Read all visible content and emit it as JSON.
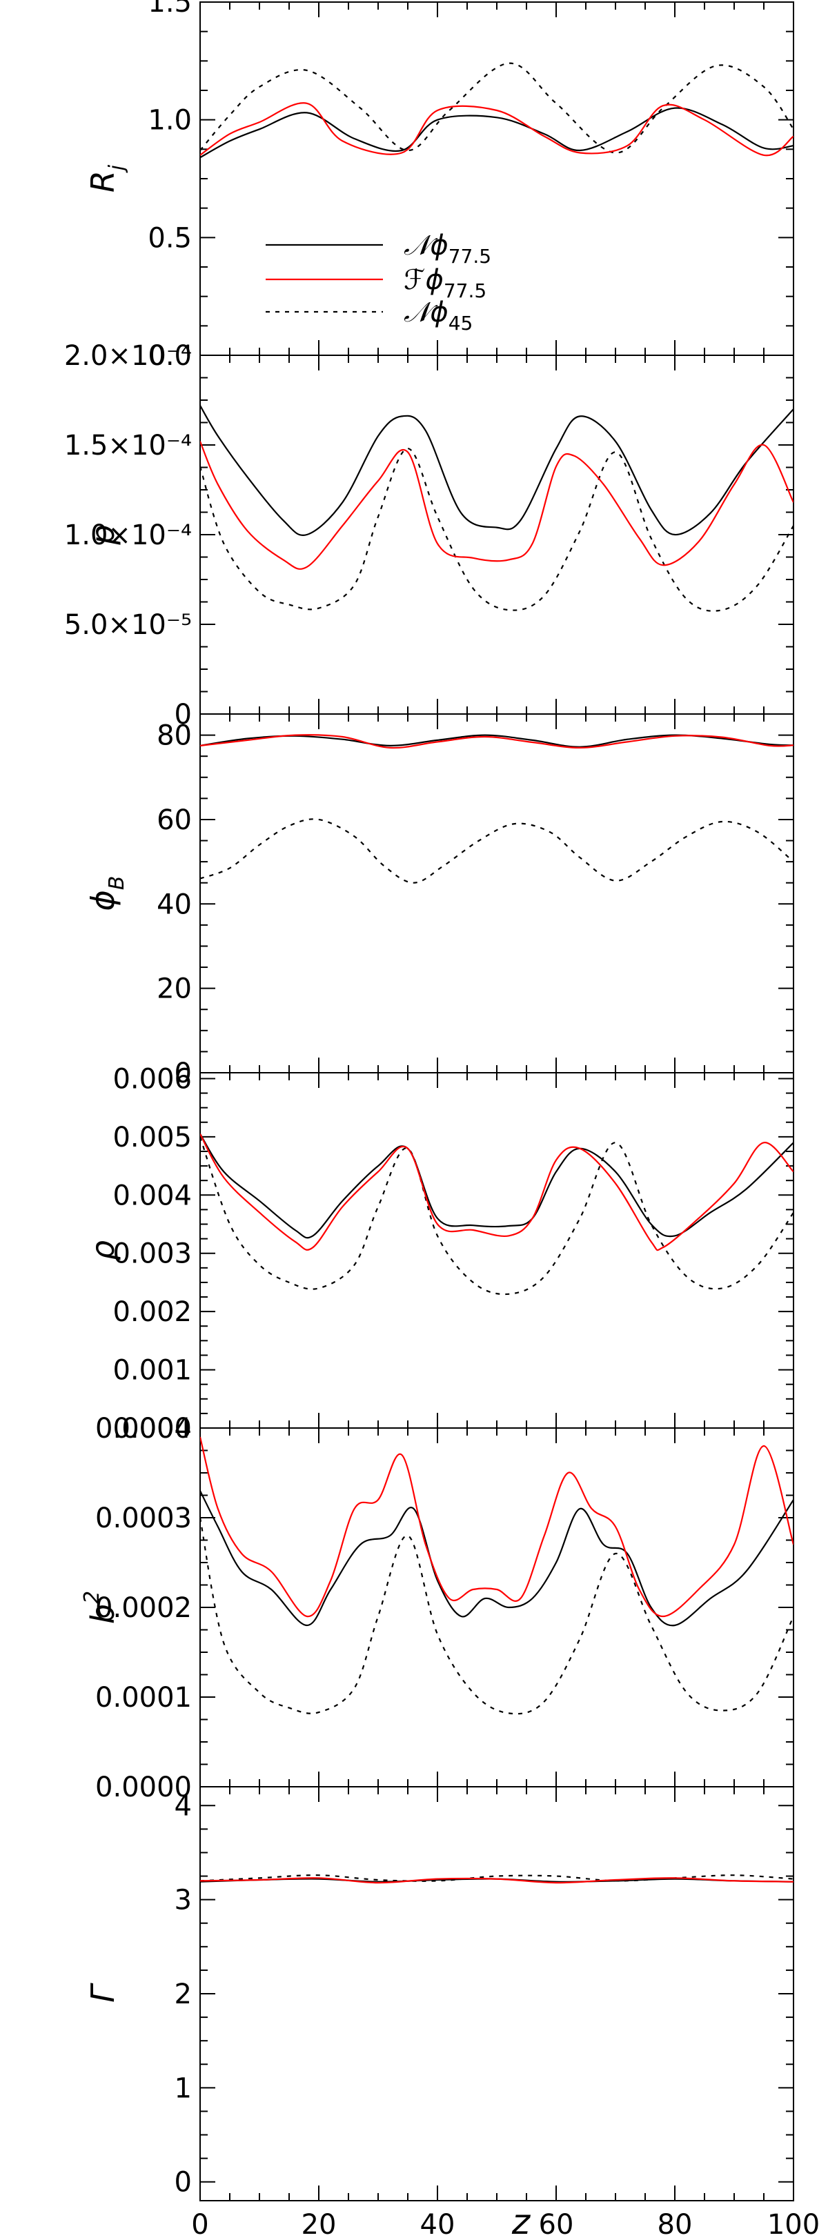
{
  "figure": {
    "xlabel": "z",
    "legend": {
      "placement": "lower-left of top panel",
      "entries": [
        {
          "key": "N77",
          "label": "𝒩ϕ",
          "sub": "77.5",
          "color": "#000000",
          "dash": "solid"
        },
        {
          "key": "F77",
          "label": "ℱϕ",
          "sub": "77.5",
          "color": "#ff0000",
          "dash": "solid"
        },
        {
          "key": "N45",
          "label": "𝒩ϕ",
          "sub": "45",
          "color": "#000000",
          "dash": "dotted"
        }
      ]
    }
  },
  "chart_data": [
    {
      "type": "line",
      "ylabel": "R",
      "ylabel_sub": "j",
      "xlim": [
        0,
        100
      ],
      "ylim": [
        0,
        1.5
      ],
      "x_ticks": [
        0,
        20,
        40,
        60,
        80,
        100
      ],
      "x_tick_labels": [
        "0",
        "20",
        "40",
        "60",
        "80",
        "100"
      ],
      "y_ticks": [
        0,
        0.5,
        1.0,
        1.5
      ],
      "y_tick_labels": [
        "0.0",
        "0.5",
        "1.0",
        "1.5"
      ],
      "series": [
        {
          "key": "N77",
          "x": [
            0,
            5,
            10,
            18,
            26,
            34,
            40,
            50,
            58,
            64,
            72,
            80,
            88,
            95,
            100
          ],
          "y": [
            0.84,
            0.91,
            0.96,
            1.03,
            0.92,
            0.87,
            1.0,
            1.01,
            0.94,
            0.87,
            0.95,
            1.05,
            0.98,
            0.88,
            0.89
          ]
        },
        {
          "key": "F77",
          "x": [
            0,
            5,
            10,
            18,
            24,
            34,
            40,
            50,
            58,
            64,
            72,
            78,
            85,
            95,
            100
          ],
          "y": [
            0.85,
            0.94,
            0.99,
            1.07,
            0.91,
            0.86,
            1.04,
            1.04,
            0.93,
            0.86,
            0.89,
            1.06,
            1.0,
            0.85,
            0.93
          ]
        },
        {
          "key": "N45",
          "x": [
            0,
            5,
            10,
            18,
            27,
            35,
            42,
            52,
            60,
            70,
            78,
            87,
            95,
            100
          ],
          "y": [
            0.87,
            1.02,
            1.14,
            1.21,
            1.05,
            0.87,
            1.04,
            1.24,
            1.07,
            0.86,
            1.05,
            1.23,
            1.14,
            0.96
          ]
        }
      ]
    },
    {
      "type": "line",
      "ylabel": "p",
      "xlim": [
        0,
        100
      ],
      "ylim": [
        0,
        0.0002
      ],
      "x_ticks": [
        0,
        20,
        40,
        60,
        80,
        100
      ],
      "x_tick_labels": [
        "0",
        "20",
        "40",
        "60",
        "80",
        "100"
      ],
      "y_ticks": [
        0,
        5e-05,
        0.0001,
        0.00015,
        0.0002
      ],
      "y_tick_labels": [
        "0",
        "5.0×10⁻⁵",
        "1.0×10⁻⁴",
        "1.5×10⁻⁴",
        "2.0×10⁻⁴"
      ],
      "series": [
        {
          "key": "N77",
          "x": [
            0,
            3,
            8,
            14,
            18,
            24,
            30,
            34,
            38,
            44,
            50,
            54,
            60,
            64,
            70,
            76,
            80,
            86,
            92,
            100
          ],
          "y": [
            0.000172,
            0.000155,
            0.000132,
            0.000108,
            0.0001,
            0.000118,
            0.000155,
            0.000166,
            0.000158,
            0.000112,
            0.000104,
            0.000108,
            0.000148,
            0.000166,
            0.000152,
            0.000114,
            0.0001,
            0.000112,
            0.00014,
            0.00017
          ]
        },
        {
          "key": "F77",
          "x": [
            0,
            3,
            8,
            14,
            18,
            24,
            30,
            35,
            40,
            46,
            52,
            56,
            60,
            63,
            68,
            74,
            78,
            84,
            90,
            95,
            100
          ],
          "y": [
            0.000152,
            0.000128,
            0.000102,
            8.6e-05,
            8.2e-05,
            0.000105,
            0.00013,
            0.000146,
            9.5e-05,
            8.7e-05,
            8.6e-05,
            9.5e-05,
            0.000138,
            0.000144,
            0.000128,
            9.8e-05,
            8.3e-05,
            9.6e-05,
            0.000128,
            0.00015,
            0.000118
          ]
        },
        {
          "key": "N45",
          "x": [
            0,
            4,
            10,
            15,
            20,
            26,
            30,
            35,
            40,
            46,
            52,
            58,
            64,
            70,
            76,
            82,
            88,
            94,
            100
          ],
          "y": [
            0.000138,
            9.5e-05,
            6.8e-05,
            6.1e-05,
            5.9e-05,
            7.2e-05,
            0.00011,
            0.000148,
            0.00011,
            7e-05,
            5.8e-05,
            6.6e-05,
            0.000102,
            0.000146,
            9.8e-05,
            6.4e-05,
            5.8e-05,
            7.2e-05,
            0.000105
          ]
        }
      ]
    },
    {
      "type": "line",
      "ylabel": "ϕ",
      "ylabel_sub": "B",
      "xlim": [
        0,
        100
      ],
      "ylim": [
        0,
        85
      ],
      "x_ticks": [
        0,
        20,
        40,
        60,
        80,
        100
      ],
      "x_tick_labels": [
        "0",
        "20",
        "40",
        "60",
        "80",
        "100"
      ],
      "y_ticks": [
        0,
        20,
        40,
        60,
        80
      ],
      "y_tick_labels": [
        "0",
        "20",
        "40",
        "60",
        "80"
      ],
      "series": [
        {
          "key": "N77",
          "x": [
            0,
            8,
            16,
            24,
            32,
            40,
            48,
            56,
            64,
            72,
            80,
            88,
            96,
            100
          ],
          "y": [
            77.5,
            79.2,
            79.8,
            79.0,
            77.5,
            78.8,
            80.0,
            78.8,
            77.2,
            79.0,
            80.0,
            79.2,
            77.8,
            77.6
          ]
        },
        {
          "key": "F77",
          "x": [
            0,
            8,
            16,
            24,
            32,
            40,
            48,
            56,
            64,
            72,
            80,
            88,
            96,
            100
          ],
          "y": [
            77.5,
            78.8,
            80.0,
            79.6,
            77.0,
            78.4,
            79.6,
            78.3,
            77.0,
            78.4,
            79.8,
            79.5,
            77.5,
            77.6
          ]
        },
        {
          "key": "N45",
          "x": [
            0,
            5,
            10,
            15,
            20,
            26,
            31,
            36,
            41,
            47,
            53,
            59,
            64,
            70,
            76,
            82,
            88,
            94,
            100
          ],
          "y": [
            46,
            48.5,
            54,
            58.5,
            60,
            56,
            49,
            45,
            49,
            55,
            59,
            57,
            51,
            45.5,
            50,
            56,
            59.5,
            57,
            50
          ]
        }
      ]
    },
    {
      "type": "line",
      "ylabel": "ρ",
      "xlim": [
        0,
        100
      ],
      "ylim": [
        0,
        0.0061
      ],
      "x_ticks": [
        0,
        20,
        40,
        60,
        80,
        100
      ],
      "x_tick_labels": [
        "0",
        "20",
        "40",
        "60",
        "80",
        "100"
      ],
      "y_ticks": [
        0,
        0.001,
        0.002,
        0.003,
        0.004,
        0.005,
        0.006
      ],
      "y_tick_labels": [
        "0.000",
        "0.001",
        "0.002",
        "0.003",
        "0.004",
        "0.005",
        "0.006"
      ],
      "series": [
        {
          "key": "N77",
          "x": [
            0,
            4,
            10,
            16,
            19,
            24,
            30,
            35,
            40,
            46,
            52,
            56,
            60,
            64,
            70,
            76,
            80,
            86,
            92,
            100
          ],
          "y": [
            0.00505,
            0.0044,
            0.0039,
            0.0034,
            0.0033,
            0.0039,
            0.0045,
            0.0048,
            0.0036,
            0.00348,
            0.00347,
            0.0036,
            0.0044,
            0.0048,
            0.0044,
            0.0035,
            0.0033,
            0.0037,
            0.0041,
            0.0049
          ]
        },
        {
          "key": "F77",
          "x": [
            0,
            4,
            10,
            16,
            19,
            24,
            30,
            35,
            40,
            46,
            52,
            56,
            60,
            64,
            70,
            76,
            78,
            84,
            90,
            95,
            100
          ],
          "y": [
            0.00505,
            0.0043,
            0.0037,
            0.0032,
            0.0031,
            0.0038,
            0.0044,
            0.0048,
            0.0035,
            0.0034,
            0.0033,
            0.0036,
            0.0046,
            0.0048,
            0.0042,
            0.0032,
            0.0031,
            0.0036,
            0.0042,
            0.0049,
            0.0044
          ]
        },
        {
          "key": "N45",
          "x": [
            0,
            5,
            10,
            15,
            20,
            26,
            30,
            35,
            40,
            46,
            52,
            58,
            64,
            70,
            76,
            82,
            88,
            94,
            100
          ],
          "y": [
            0.005,
            0.0035,
            0.0028,
            0.0025,
            0.0024,
            0.0028,
            0.0038,
            0.0048,
            0.0033,
            0.0025,
            0.0023,
            0.0026,
            0.0036,
            0.0049,
            0.0035,
            0.0026,
            0.0024,
            0.0028,
            0.0037
          ]
        }
      ]
    },
    {
      "type": "line",
      "ylabel": "b",
      "ylabel_sup": "2",
      "xlim": [
        0,
        100
      ],
      "ylim": [
        0,
        0.0004
      ],
      "x_ticks": [
        0,
        20,
        40,
        60,
        80,
        100
      ],
      "x_tick_labels": [
        "0",
        "20",
        "40",
        "60",
        "80",
        "100"
      ],
      "y_ticks": [
        0,
        0.0001,
        0.0002,
        0.0003,
        0.0004
      ],
      "y_tick_labels": [
        "0.0000",
        "0.0001",
        "0.0002",
        "0.0003",
        "0.0004"
      ],
      "series": [
        {
          "key": "N77",
          "x": [
            0,
            3,
            7,
            12,
            18,
            22,
            27,
            32,
            36,
            40,
            44,
            48,
            52,
            56,
            60,
            64,
            68,
            72,
            76,
            80,
            86,
            92,
            100
          ],
          "y": [
            0.00033,
            0.00029,
            0.00024,
            0.00022,
            0.00018,
            0.00022,
            0.00027,
            0.00028,
            0.00031,
            0.00023,
            0.00019,
            0.00021,
            0.0002,
            0.00021,
            0.00025,
            0.00031,
            0.00027,
            0.00026,
            0.0002,
            0.00018,
            0.00021,
            0.00024,
            0.00032
          ]
        },
        {
          "key": "F77",
          "x": [
            0,
            3,
            7,
            12,
            18,
            22,
            26,
            30,
            34,
            38,
            42,
            46,
            50,
            54,
            58,
            62,
            66,
            70,
            74,
            78,
            84,
            90,
            95,
            100
          ],
          "y": [
            0.00039,
            0.00031,
            0.00026,
            0.00024,
            0.00019,
            0.00023,
            0.00031,
            0.00032,
            0.00037,
            0.00027,
            0.00021,
            0.00022,
            0.00022,
            0.00021,
            0.00028,
            0.00035,
            0.00031,
            0.00029,
            0.00022,
            0.00019,
            0.00022,
            0.00027,
            0.00038,
            0.00027
          ]
        },
        {
          "key": "N45",
          "x": [
            0,
            4,
            10,
            15,
            20,
            26,
            30,
            35,
            40,
            46,
            52,
            58,
            64,
            70,
            76,
            82,
            88,
            94,
            100
          ],
          "y": [
            0.0003,
            0.00016,
            0.000105,
            8.8e-05,
            8.3e-05,
            0.00011,
            0.00019,
            0.00028,
            0.00017,
            0.000105,
            8.2e-05,
            9.5e-05,
            0.000165,
            0.00026,
            0.00018,
            0.000105,
            8.5e-05,
            0.000105,
            0.00019
          ]
        }
      ]
    },
    {
      "type": "line",
      "ylabel": "Γ",
      "xlim": [
        0,
        100
      ],
      "ylim": [
        -0.2,
        4.2
      ],
      "x_ticks": [
        0,
        20,
        40,
        60,
        80,
        100
      ],
      "x_tick_labels": [
        "0",
        "20",
        "40",
        "60",
        "80",
        "100"
      ],
      "y_ticks": [
        0,
        1,
        2,
        3,
        4
      ],
      "y_tick_labels": [
        "0",
        "1",
        "2",
        "3",
        "4"
      ],
      "series": [
        {
          "key": "N77",
          "x": [
            0,
            10,
            20,
            30,
            40,
            50,
            60,
            70,
            80,
            90,
            100
          ],
          "y": [
            3.19,
            3.21,
            3.22,
            3.19,
            3.21,
            3.22,
            3.19,
            3.2,
            3.22,
            3.2,
            3.19
          ]
        },
        {
          "key": "F77",
          "x": [
            0,
            10,
            20,
            30,
            40,
            50,
            60,
            70,
            80,
            90,
            100
          ],
          "y": [
            3.2,
            3.21,
            3.23,
            3.18,
            3.22,
            3.22,
            3.18,
            3.21,
            3.23,
            3.2,
            3.19
          ]
        },
        {
          "key": "N45",
          "x": [
            0,
            10,
            20,
            30,
            40,
            50,
            60,
            70,
            80,
            90,
            100
          ],
          "y": [
            3.2,
            3.23,
            3.26,
            3.21,
            3.2,
            3.25,
            3.25,
            3.2,
            3.23,
            3.26,
            3.22
          ]
        }
      ]
    }
  ]
}
